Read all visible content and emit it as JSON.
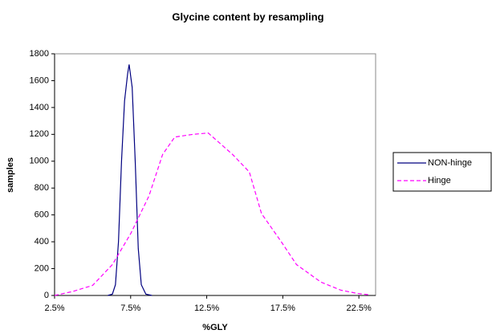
{
  "chart_data": {
    "type": "line",
    "title": "Glycine content by resampling",
    "x_label": "%GLY",
    "y_label": "samples",
    "xlim": [
      2.5,
      23.6
    ],
    "ylim": [
      0,
      1800
    ],
    "xticks": [
      {
        "value": 2.5,
        "label": "2.5%"
      },
      {
        "value": 7.5,
        "label": "7.5%"
      },
      {
        "value": 12.5,
        "label": "12.5%"
      },
      {
        "value": 17.5,
        "label": "17.5%"
      },
      {
        "value": 22.5,
        "label": "22.5%"
      }
    ],
    "yticks": [
      0,
      200,
      400,
      600,
      800,
      1000,
      1200,
      1400,
      1600,
      1800
    ],
    "grid": false,
    "legend": "right",
    "series": [
      {
        "name": "NON-hinge",
        "color": "#000080",
        "line_style": "solid",
        "x": [
          6.0,
          6.3,
          6.5,
          6.7,
          6.9,
          7.1,
          7.3,
          7.4,
          7.6,
          7.8,
          8.0,
          8.2,
          8.5,
          8.9
        ],
        "values": [
          0,
          10,
          80,
          400,
          1000,
          1450,
          1650,
          1720,
          1550,
          1000,
          350,
          80,
          10,
          0
        ]
      },
      {
        "name": "Hinge",
        "color": "#ff00ff",
        "line_style": "dashed",
        "x": [
          2.5,
          3.7,
          5.0,
          6.3,
          7.5,
          8.7,
          9.6,
          10.4,
          11.6,
          12.6,
          14.2,
          15.3,
          16.1,
          17.4,
          18.4,
          20.0,
          21.3,
          22.4,
          23.2
        ],
        "values": [
          0,
          30,
          75,
          230,
          460,
          740,
          1050,
          1180,
          1200,
          1210,
          1050,
          920,
          610,
          400,
          230,
          100,
          40,
          15,
          5
        ]
      }
    ]
  }
}
